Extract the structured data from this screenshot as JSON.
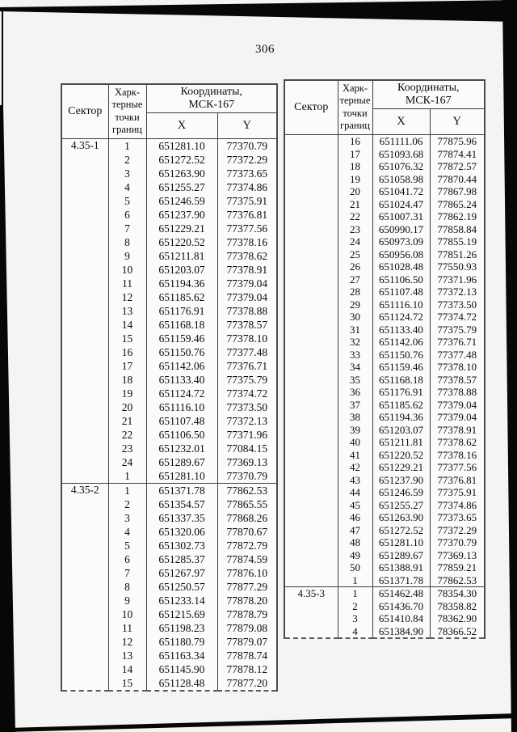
{
  "page": {
    "number": "306"
  },
  "colors": {
    "ink": "#0c0c0c",
    "paper": "#f4f4f2",
    "table_paper": "#fbfbf9",
    "scan_edge": "#070707",
    "table_border": "#3c3c3c"
  },
  "table_header": {
    "sector": "Сектор",
    "points_lines": [
      "Харк-",
      "терные",
      "точки",
      "границ"
    ],
    "coords_lines": [
      "Координаты,",
      "МСК-167"
    ],
    "x": "X",
    "y": "Y"
  },
  "tables": [
    {
      "id": "left",
      "groups": [
        {
          "sector": "4.35-1",
          "rows": [
            [
              "1",
              "651281.10",
              "77370.79"
            ],
            [
              "2",
              "651272.52",
              "77372.29"
            ],
            [
              "3",
              "651263.90",
              "77373.65"
            ],
            [
              "4",
              "651255.27",
              "77374.86"
            ],
            [
              "5",
              "651246.59",
              "77375.91"
            ],
            [
              "6",
              "651237.90",
              "77376.81"
            ],
            [
              "7",
              "651229.21",
              "77377.56"
            ],
            [
              "8",
              "651220.52",
              "77378.16"
            ],
            [
              "9",
              "651211.81",
              "77378.62"
            ],
            [
              "10",
              "651203.07",
              "77378.91"
            ],
            [
              "11",
              "651194.36",
              "77379.04"
            ],
            [
              "12",
              "651185.62",
              "77379.04"
            ],
            [
              "13",
              "651176.91",
              "77378.88"
            ],
            [
              "14",
              "651168.18",
              "77378.57"
            ],
            [
              "15",
              "651159.46",
              "77378.10"
            ],
            [
              "16",
              "651150.76",
              "77377.48"
            ],
            [
              "17",
              "651142.06",
              "77376.71"
            ],
            [
              "18",
              "651133.40",
              "77375.79"
            ],
            [
              "19",
              "651124.72",
              "77374.72"
            ],
            [
              "20",
              "651116.10",
              "77373.50"
            ],
            [
              "21",
              "651107.48",
              "77372.13"
            ],
            [
              "22",
              "651106.50",
              "77371.96"
            ],
            [
              "23",
              "651232.01",
              "77084.15"
            ],
            [
              "24",
              "651289.67",
              "77369.13"
            ],
            [
              "1",
              "651281.10",
              "77370.79"
            ]
          ]
        },
        {
          "sector": "4.35-2",
          "rows": [
            [
              "1",
              "651371.78",
              "77862.53"
            ],
            [
              "2",
              "651354.57",
              "77865.55"
            ],
            [
              "3",
              "651337.35",
              "77868.26"
            ],
            [
              "4",
              "651320.06",
              "77870.67"
            ],
            [
              "5",
              "651302.73",
              "77872.79"
            ],
            [
              "6",
              "651285.37",
              "77874.59"
            ],
            [
              "7",
              "651267.97",
              "77876.10"
            ],
            [
              "8",
              "651250.57",
              "77877.29"
            ],
            [
              "9",
              "651233.14",
              "77878.20"
            ],
            [
              "10",
              "651215.69",
              "77878.79"
            ],
            [
              "11",
              "651198.23",
              "77879.08"
            ],
            [
              "12",
              "651180.79",
              "77879.07"
            ],
            [
              "13",
              "651163.34",
              "77878.74"
            ],
            [
              "14",
              "651145.90",
              "77878.12"
            ],
            [
              "15",
              "651128.48",
              "77877.20"
            ]
          ]
        }
      ]
    },
    {
      "id": "right",
      "groups": [
        {
          "sector": "",
          "rows": [
            [
              "16",
              "651111.06",
              "77875.96"
            ],
            [
              "17",
              "651093.68",
              "77874.41"
            ],
            [
              "18",
              "651076.32",
              "77872.57"
            ],
            [
              "19",
              "651058.98",
              "77870.44"
            ],
            [
              "20",
              "651041.72",
              "77867.98"
            ],
            [
              "21",
              "651024.47",
              "77865.24"
            ],
            [
              "22",
              "651007.31",
              "77862.19"
            ],
            [
              "23",
              "650990.17",
              "77858.84"
            ],
            [
              "24",
              "650973.09",
              "77855.19"
            ],
            [
              "25",
              "650956.08",
              "77851.26"
            ],
            [
              "26",
              "651028.48",
              "77550.93"
            ],
            [
              "27",
              "651106.50",
              "77371.96"
            ],
            [
              "28",
              "651107.48",
              "77372.13"
            ],
            [
              "29",
              "651116.10",
              "77373.50"
            ],
            [
              "30",
              "651124.72",
              "77374.72"
            ],
            [
              "31",
              "651133.40",
              "77375.79"
            ],
            [
              "32",
              "651142.06",
              "77376.71"
            ],
            [
              "33",
              "651150.76",
              "77377.48"
            ],
            [
              "34",
              "651159.46",
              "77378.10"
            ],
            [
              "35",
              "651168.18",
              "77378.57"
            ],
            [
              "36",
              "651176.91",
              "77378.88"
            ],
            [
              "37",
              "651185.62",
              "77379.04"
            ],
            [
              "38",
              "651194.36",
              "77379.04"
            ],
            [
              "39",
              "651203.07",
              "77378.91"
            ],
            [
              "40",
              "651211.81",
              "77378.62"
            ],
            [
              "41",
              "651220.52",
              "77378.16"
            ],
            [
              "42",
              "651229.21",
              "77377.56"
            ],
            [
              "43",
              "651237.90",
              "77376.81"
            ],
            [
              "44",
              "651246.59",
              "77375.91"
            ],
            [
              "45",
              "651255.27",
              "77374.86"
            ],
            [
              "46",
              "651263.90",
              "77373.65"
            ],
            [
              "47",
              "651272.52",
              "77372.29"
            ],
            [
              "48",
              "651281.10",
              "77370.79"
            ],
            [
              "49",
              "651289.67",
              "77369.13"
            ],
            [
              "50",
              "651388.91",
              "77859.21"
            ],
            [
              "1",
              "651371.78",
              "77862.53"
            ]
          ]
        },
        {
          "sector": "4.35-3",
          "rows": [
            [
              "1",
              "651462.48",
              "78354.30"
            ],
            [
              "2",
              "651436.70",
              "78358.82"
            ],
            [
              "3",
              "651410.84",
              "78362.90"
            ],
            [
              "4",
              "651384.90",
              "78366.52"
            ]
          ]
        }
      ]
    }
  ]
}
